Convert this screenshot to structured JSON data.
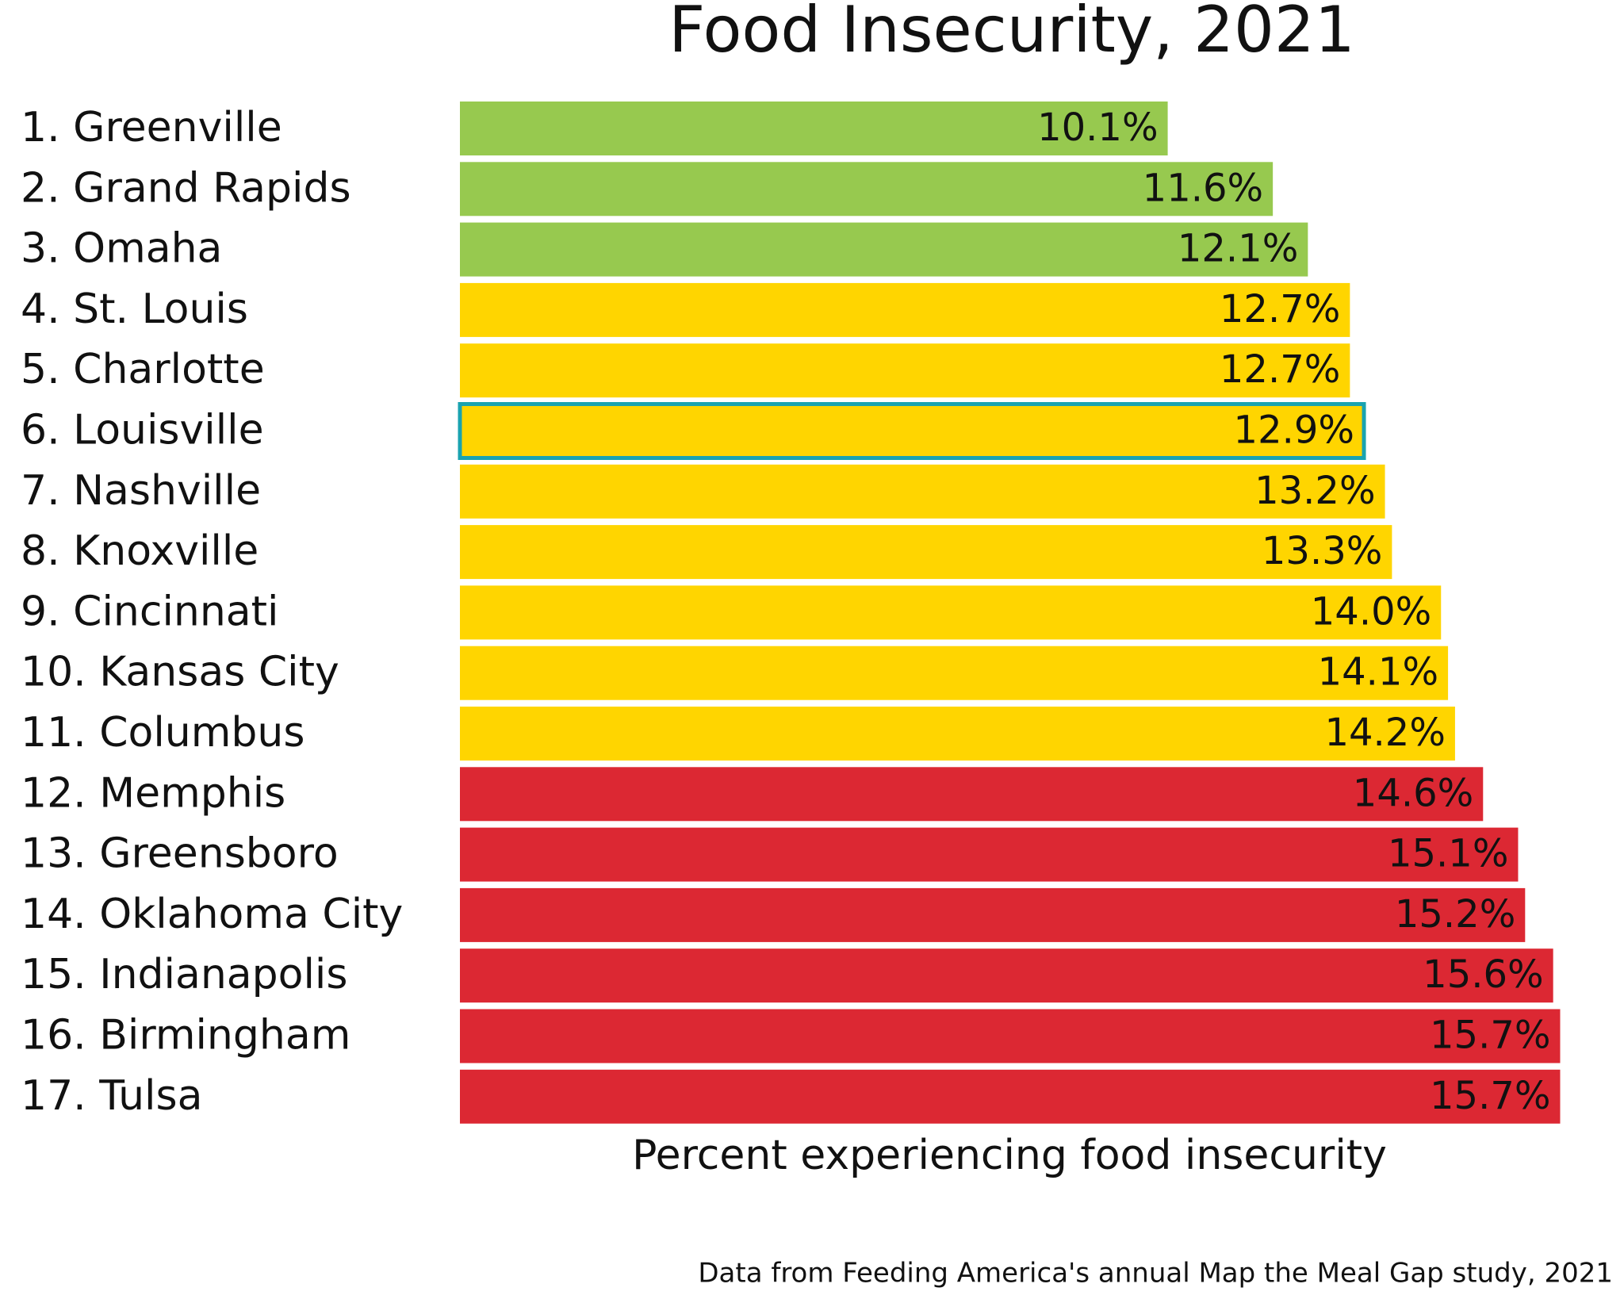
{
  "chart_data": {
    "type": "hbar",
    "title": "Food Insecurity, 2021",
    "x_label": "Percent experiencing food insecurity",
    "source": "Data from Feeding America's annual Map the Meal Gap study, 2021",
    "categories": [
      "1. Greenville",
      "2. Grand Rapids",
      "3. Omaha",
      "4. St. Louis",
      "5. Charlotte",
      "6. Louisville",
      "7. Nashville",
      "8. Knoxville",
      "9. Cincinnati",
      "10. Kansas City",
      "11. Columbus",
      "12. Memphis",
      "13. Greensboro",
      "14. Oklahoma City",
      "15. Indianapolis",
      "16. Birmingham",
      "17. Tulsa"
    ],
    "values": [
      10.1,
      11.6,
      12.1,
      12.7,
      12.7,
      12.9,
      13.2,
      13.3,
      14.0,
      14.1,
      14.2,
      14.6,
      15.1,
      15.2,
      15.6,
      15.7,
      15.7
    ],
    "value_labels": [
      "10.1%",
      "11.6%",
      "12.1%",
      "12.7%",
      "12.7%",
      "12.9%",
      "13.2%",
      "13.3%",
      "14.0%",
      "14.1%",
      "14.2%",
      "14.6%",
      "15.1%",
      "15.2%",
      "15.6%",
      "15.7%",
      "15.7%"
    ],
    "colors": [
      "#97c94f",
      "#97c94f",
      "#97c94f",
      "#ffd500",
      "#ffd500",
      "#ffd500",
      "#ffd500",
      "#ffd500",
      "#ffd500",
      "#ffd500",
      "#ffd500",
      "#dc2833",
      "#dc2833",
      "#dc2833",
      "#dc2833",
      "#dc2833",
      "#dc2833"
    ],
    "highlight_index": 5,
    "highlight_color": "#1aa3b0",
    "xlim": [
      0,
      16
    ]
  }
}
